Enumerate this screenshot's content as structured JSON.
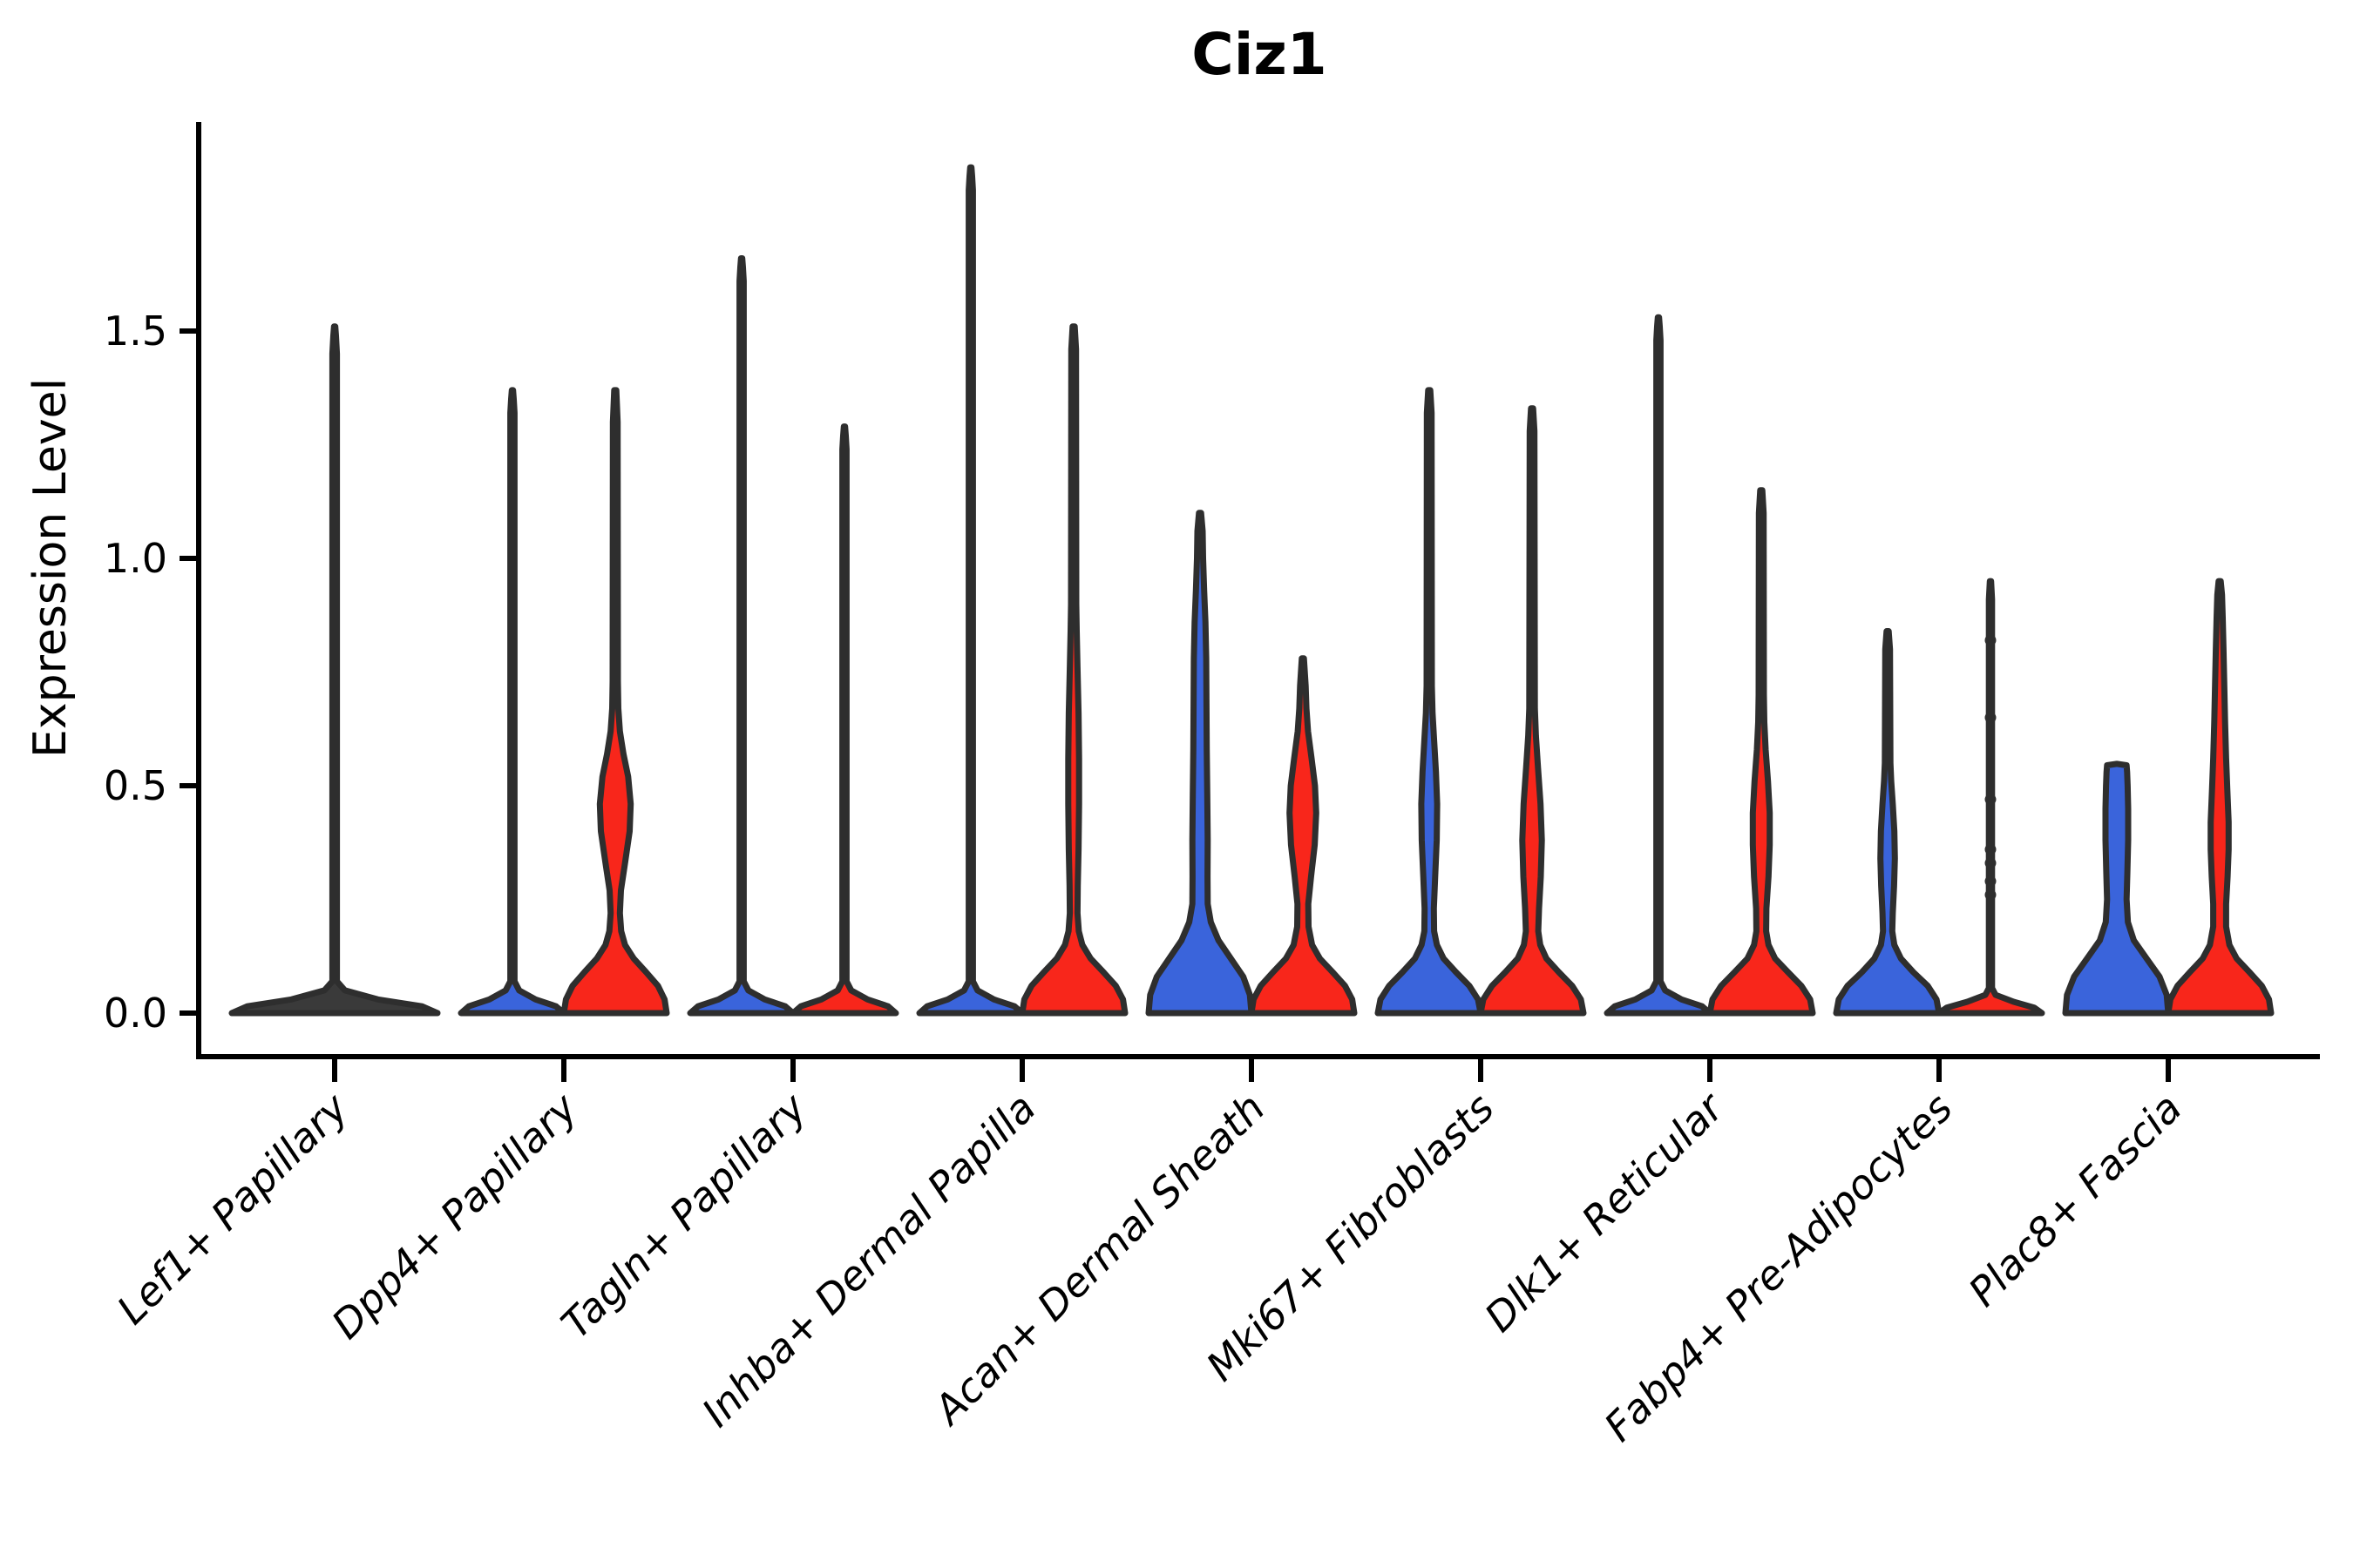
{
  "title": "Ciz1",
  "chart_data": {
    "type": "violin",
    "title": "Ciz1",
    "xlabel": "",
    "ylabel": "Expression Level",
    "ylim": [
      0,
      1.95
    ],
    "yticks": [
      0.0,
      0.5,
      1.0,
      1.5
    ],
    "ytick_labels": [
      "0.0",
      "0.5",
      "1.0",
      "1.5"
    ],
    "grid": false,
    "legend": "none",
    "categories": [
      "Lef1+ Papillary",
      "Dpp4+ Papillary",
      "Tagln+ Papillary",
      "Inhba+ Dermal Papilla",
      "Acan+ Dermal Sheath",
      "Mki67+ Fibroblasts",
      "Dlk1+ Reticular",
      "Fabp4+ Pre-Adipocytes",
      "Plac8+ Fascia"
    ],
    "conditions": [
      {
        "id": "blue",
        "color": "#3A64DB",
        "dodge": "left"
      },
      {
        "id": "red",
        "color": "#F8261B",
        "dodge": "right"
      }
    ],
    "outline_color": "#2E2E2E",
    "single_violin_fill": "#3a3a3a",
    "violins": [
      {
        "category_index": 0,
        "condition": "single",
        "max_expression": 1.51,
        "bulk_near_zero": true,
        "profile": [
          [
            0,
            1
          ],
          [
            0.015,
            0.85
          ],
          [
            0.03,
            0.42
          ],
          [
            0.05,
            0.1
          ],
          [
            0.07,
            0.022
          ],
          [
            1.45,
            0.022
          ],
          [
            1.49,
            0.013
          ],
          [
            1.51,
            0.006
          ]
        ]
      },
      {
        "category_index": 1,
        "condition": "blue",
        "max_expression": 1.37,
        "bulk_near_zero": true,
        "profile": [
          [
            0,
            1
          ],
          [
            0.015,
            0.85
          ],
          [
            0.03,
            0.45
          ],
          [
            0.05,
            0.13
          ],
          [
            0.07,
            0.04
          ],
          [
            1.32,
            0.04
          ],
          [
            1.35,
            0.025
          ],
          [
            1.37,
            0.012
          ]
        ]
      },
      {
        "category_index": 1,
        "condition": "red",
        "max_expression": 1.37,
        "bulge": [
          0.27,
          0.62
        ],
        "bulge_peak": 0.45,
        "profile": [
          [
            0,
            1
          ],
          [
            0.03,
            0.96
          ],
          [
            0.06,
            0.83
          ],
          [
            0.09,
            0.6
          ],
          [
            0.12,
            0.36
          ],
          [
            0.15,
            0.19
          ],
          [
            0.18,
            0.115
          ],
          [
            0.22,
            0.09
          ],
          [
            0.27,
            0.11
          ],
          [
            0.33,
            0.19
          ],
          [
            0.4,
            0.28
          ],
          [
            0.46,
            0.3
          ],
          [
            0.52,
            0.25
          ],
          [
            0.57,
            0.16
          ],
          [
            0.62,
            0.09
          ],
          [
            0.67,
            0.06
          ],
          [
            0.73,
            0.05
          ],
          [
            1.3,
            0.045
          ],
          [
            1.37,
            0.02
          ]
        ]
      },
      {
        "category_index": 2,
        "condition": "blue",
        "max_expression": 1.66,
        "bulk_near_zero": true,
        "profile": [
          [
            0,
            1
          ],
          [
            0.015,
            0.85
          ],
          [
            0.03,
            0.45
          ],
          [
            0.05,
            0.13
          ],
          [
            0.07,
            0.04
          ],
          [
            1.61,
            0.04
          ],
          [
            1.64,
            0.025
          ],
          [
            1.66,
            0.012
          ]
        ]
      },
      {
        "category_index": 2,
        "condition": "red",
        "max_expression": 1.29,
        "bulk_near_zero": true,
        "profile": [
          [
            0,
            1
          ],
          [
            0.015,
            0.85
          ],
          [
            0.03,
            0.45
          ],
          [
            0.05,
            0.13
          ],
          [
            0.07,
            0.04
          ],
          [
            1.24,
            0.04
          ],
          [
            1.27,
            0.025
          ],
          [
            1.29,
            0.012
          ]
        ]
      },
      {
        "category_index": 3,
        "condition": "blue",
        "max_expression": 1.86,
        "bulk_near_zero": true,
        "profile": [
          [
            0,
            1
          ],
          [
            0.015,
            0.85
          ],
          [
            0.03,
            0.45
          ],
          [
            0.05,
            0.13
          ],
          [
            0.07,
            0.04
          ],
          [
            1.81,
            0.04
          ],
          [
            1.84,
            0.025
          ],
          [
            1.86,
            0.012
          ]
        ]
      },
      {
        "category_index": 3,
        "condition": "red",
        "max_expression": 1.51,
        "bulge": [
          0.26,
          0.86
        ],
        "bulge_peak": 0.55,
        "profile": [
          [
            0,
            1
          ],
          [
            0.03,
            0.96
          ],
          [
            0.06,
            0.82
          ],
          [
            0.09,
            0.58
          ],
          [
            0.12,
            0.33
          ],
          [
            0.15,
            0.17
          ],
          [
            0.18,
            0.1
          ],
          [
            0.22,
            0.075
          ],
          [
            0.28,
            0.08
          ],
          [
            0.36,
            0.095
          ],
          [
            0.46,
            0.105
          ],
          [
            0.56,
            0.105
          ],
          [
            0.66,
            0.095
          ],
          [
            0.76,
            0.075
          ],
          [
            0.84,
            0.06
          ],
          [
            0.9,
            0.05
          ],
          [
            1.46,
            0.045
          ],
          [
            1.51,
            0.02
          ]
        ]
      },
      {
        "category_index": 4,
        "condition": "blue",
        "max_expression": 1.1,
        "bulge": [
          0.2,
          0.95
        ],
        "bulge_peak": 0.38,
        "profile": [
          [
            0,
            1
          ],
          [
            0.04,
            0.97
          ],
          [
            0.08,
            0.84
          ],
          [
            0.12,
            0.6
          ],
          [
            0.16,
            0.36
          ],
          [
            0.2,
            0.21
          ],
          [
            0.24,
            0.15
          ],
          [
            0.3,
            0.145
          ],
          [
            0.38,
            0.15
          ],
          [
            0.48,
            0.14
          ],
          [
            0.58,
            0.13
          ],
          [
            0.68,
            0.125
          ],
          [
            0.78,
            0.12
          ],
          [
            0.86,
            0.105
          ],
          [
            0.93,
            0.08
          ],
          [
            1.0,
            0.06
          ],
          [
            1.06,
            0.05
          ],
          [
            1.1,
            0.02
          ]
        ]
      },
      {
        "category_index": 4,
        "condition": "red",
        "max_expression": 0.78,
        "bulge": [
          0.25,
          0.65
        ],
        "bulge_peak": 0.44,
        "profile": [
          [
            0,
            1
          ],
          [
            0.03,
            0.96
          ],
          [
            0.06,
            0.82
          ],
          [
            0.09,
            0.58
          ],
          [
            0.12,
            0.33
          ],
          [
            0.15,
            0.18
          ],
          [
            0.19,
            0.11
          ],
          [
            0.24,
            0.105
          ],
          [
            0.3,
            0.16
          ],
          [
            0.37,
            0.23
          ],
          [
            0.44,
            0.26
          ],
          [
            0.5,
            0.235
          ],
          [
            0.56,
            0.17
          ],
          [
            0.62,
            0.1
          ],
          [
            0.67,
            0.07
          ],
          [
            0.72,
            0.055
          ],
          [
            0.78,
            0.02
          ]
        ]
      },
      {
        "category_index": 5,
        "condition": "blue",
        "max_expression": 1.37,
        "bulge": [
          0.2,
          0.66
        ],
        "bulge_peak": 0.46,
        "profile": [
          [
            0,
            1
          ],
          [
            0.03,
            0.95
          ],
          [
            0.06,
            0.78
          ],
          [
            0.09,
            0.52
          ],
          [
            0.12,
            0.28
          ],
          [
            0.15,
            0.15
          ],
          [
            0.18,
            0.095
          ],
          [
            0.23,
            0.09
          ],
          [
            0.3,
            0.115
          ],
          [
            0.38,
            0.145
          ],
          [
            0.46,
            0.155
          ],
          [
            0.53,
            0.13
          ],
          [
            0.6,
            0.095
          ],
          [
            0.66,
            0.065
          ],
          [
            0.72,
            0.05
          ],
          [
            1.32,
            0.045
          ],
          [
            1.37,
            0.02
          ]
        ]
      },
      {
        "category_index": 5,
        "condition": "red",
        "max_expression": 1.33,
        "bulge": [
          0.17,
          0.7
        ],
        "bulge_peak": 0.38,
        "profile": [
          [
            0,
            1
          ],
          [
            0.03,
            0.95
          ],
          [
            0.06,
            0.78
          ],
          [
            0.09,
            0.52
          ],
          [
            0.12,
            0.28
          ],
          [
            0.15,
            0.16
          ],
          [
            0.18,
            0.12
          ],
          [
            0.23,
            0.135
          ],
          [
            0.3,
            0.17
          ],
          [
            0.38,
            0.19
          ],
          [
            0.46,
            0.165
          ],
          [
            0.54,
            0.115
          ],
          [
            0.61,
            0.075
          ],
          [
            0.67,
            0.055
          ],
          [
            1.28,
            0.045
          ],
          [
            1.33,
            0.02
          ]
        ]
      },
      {
        "category_index": 6,
        "condition": "blue",
        "max_expression": 1.53,
        "bulk_near_zero": true,
        "profile": [
          [
            0,
            1
          ],
          [
            0.015,
            0.85
          ],
          [
            0.03,
            0.45
          ],
          [
            0.05,
            0.13
          ],
          [
            0.07,
            0.04
          ],
          [
            1.48,
            0.04
          ],
          [
            1.51,
            0.025
          ],
          [
            1.53,
            0.012
          ]
        ]
      },
      {
        "category_index": 6,
        "condition": "red",
        "max_expression": 1.15,
        "bulge": [
          0.19,
          0.68
        ],
        "bulge_peak": 0.43,
        "profile": [
          [
            0,
            1
          ],
          [
            0.03,
            0.95
          ],
          [
            0.06,
            0.78
          ],
          [
            0.09,
            0.52
          ],
          [
            0.12,
            0.27
          ],
          [
            0.15,
            0.14
          ],
          [
            0.18,
            0.095
          ],
          [
            0.23,
            0.1
          ],
          [
            0.3,
            0.14
          ],
          [
            0.37,
            0.165
          ],
          [
            0.44,
            0.165
          ],
          [
            0.51,
            0.13
          ],
          [
            0.58,
            0.085
          ],
          [
            0.64,
            0.06
          ],
          [
            0.7,
            0.05
          ],
          [
            1.1,
            0.045
          ],
          [
            1.15,
            0.02
          ]
        ]
      },
      {
        "category_index": 7,
        "condition": "blue",
        "max_expression": 0.84,
        "bulge": [
          0.16,
          0.54
        ],
        "bulge_peak": 0.35,
        "profile": [
          [
            0,
            1
          ],
          [
            0.03,
            0.95
          ],
          [
            0.06,
            0.78
          ],
          [
            0.09,
            0.5
          ],
          [
            0.12,
            0.26
          ],
          [
            0.15,
            0.13
          ],
          [
            0.18,
            0.09
          ],
          [
            0.22,
            0.1
          ],
          [
            0.28,
            0.125
          ],
          [
            0.34,
            0.14
          ],
          [
            0.4,
            0.13
          ],
          [
            0.46,
            0.1
          ],
          [
            0.51,
            0.07
          ],
          [
            0.55,
            0.055
          ],
          [
            0.8,
            0.045
          ],
          [
            0.84,
            0.02
          ]
        ]
      },
      {
        "category_index": 7,
        "condition": "red",
        "max_expression": 0.95,
        "bulk_near_zero": true,
        "sparse": true,
        "profile": [
          [
            0,
            1
          ],
          [
            0.012,
            0.85
          ],
          [
            0.025,
            0.45
          ],
          [
            0.04,
            0.1
          ],
          [
            0.055,
            0.03
          ],
          [
            0.91,
            0.03
          ],
          [
            0.95,
            0.012
          ]
        ],
        "points": [
          0.82,
          0.65,
          0.47,
          0.36,
          0.33,
          0.29,
          0.26
        ]
      },
      {
        "category_index": 8,
        "condition": "blue",
        "max_expression": 0.55,
        "flat_top": 0.548,
        "bulge": [
          0.2,
          0.55
        ],
        "bulge_peak": 0.42,
        "profile": [
          [
            0,
            1
          ],
          [
            0.04,
            0.97
          ],
          [
            0.08,
            0.83
          ],
          [
            0.12,
            0.58
          ],
          [
            0.16,
            0.33
          ],
          [
            0.2,
            0.215
          ],
          [
            0.25,
            0.19
          ],
          [
            0.31,
            0.205
          ],
          [
            0.38,
            0.22
          ],
          [
            0.45,
            0.22
          ],
          [
            0.5,
            0.21
          ],
          [
            0.53,
            0.2
          ],
          [
            0.545,
            0.19
          ],
          [
            0.548,
            0.001
          ]
        ]
      },
      {
        "category_index": 8,
        "condition": "red",
        "max_expression": 0.95,
        "bulge": [
          0.2,
          0.92
        ],
        "bulge_peak": 0.4,
        "profile": [
          [
            0,
            1
          ],
          [
            0.03,
            0.96
          ],
          [
            0.06,
            0.82
          ],
          [
            0.09,
            0.58
          ],
          [
            0.12,
            0.33
          ],
          [
            0.15,
            0.19
          ],
          [
            0.19,
            0.125
          ],
          [
            0.24,
            0.125
          ],
          [
            0.3,
            0.155
          ],
          [
            0.36,
            0.175
          ],
          [
            0.42,
            0.175
          ],
          [
            0.49,
            0.15
          ],
          [
            0.56,
            0.125
          ],
          [
            0.64,
            0.105
          ],
          [
            0.72,
            0.09
          ],
          [
            0.8,
            0.075
          ],
          [
            0.87,
            0.06
          ],
          [
            0.92,
            0.045
          ],
          [
            0.95,
            0.02
          ]
        ]
      }
    ]
  }
}
